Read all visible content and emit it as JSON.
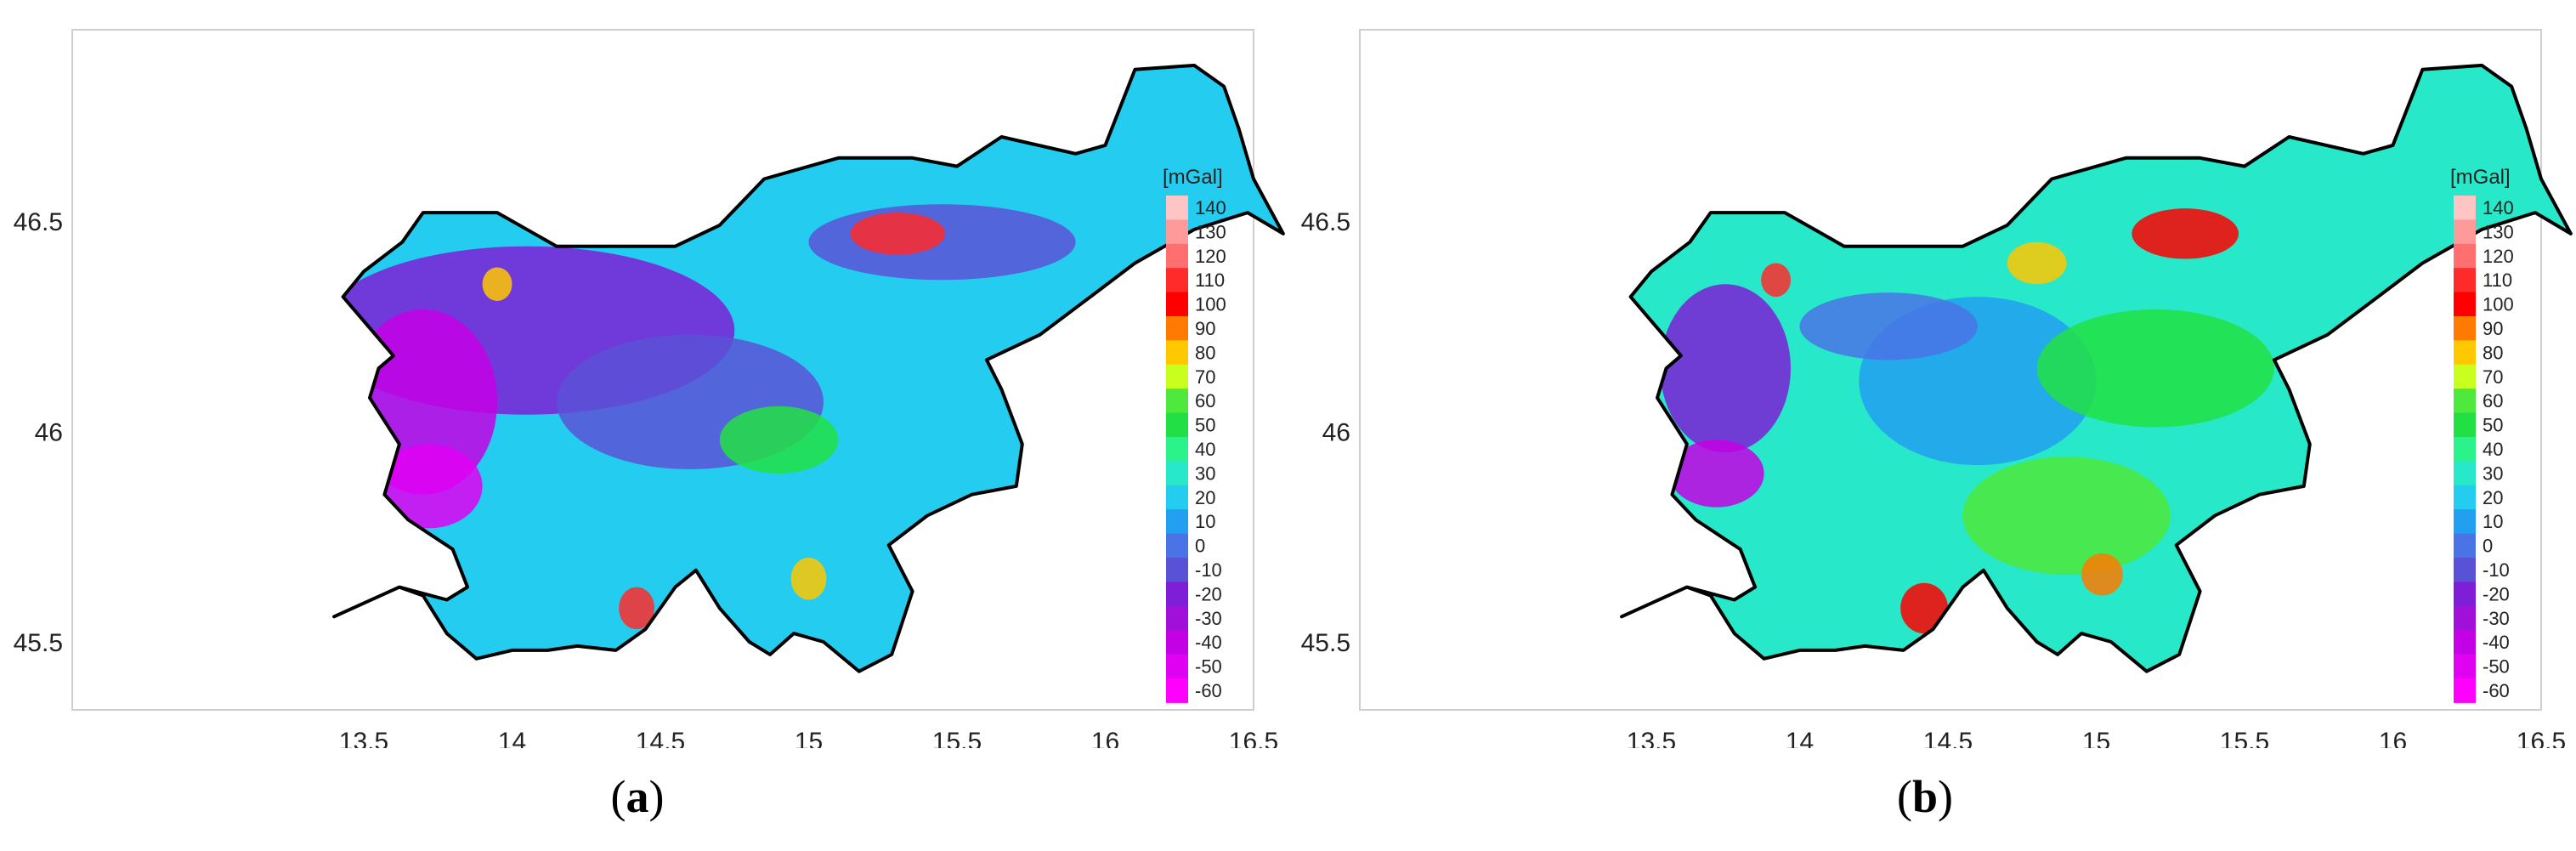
{
  "colorbar": {
    "unit": "[mGal]",
    "levels": [
      "140",
      "130",
      "120",
      "110",
      "100",
      "90",
      "80",
      "70",
      "60",
      "50",
      "40",
      "30",
      "20",
      "10",
      "0",
      "-10",
      "-20",
      "-30",
      "-40",
      "-50",
      "-60"
    ],
    "colors": [
      "#ffc4c4",
      "#ff9a9a",
      "#ff6f6f",
      "#ff2a2a",
      "#ff0000",
      "#ff7a00",
      "#ffc800",
      "#c8ff1e",
      "#4fe83c",
      "#22e044",
      "#2cf28a",
      "#27e8c8",
      "#24cdef",
      "#229ff0",
      "#4a74e6",
      "#5a52d6",
      "#7e1ed6",
      "#a010d8",
      "#c400e4",
      "#e000f2",
      "#ff00ff"
    ]
  },
  "axes": {
    "x_ticks": [
      "13.5",
      "14",
      "14.5",
      "15",
      "15.5",
      "16",
      "16.5"
    ],
    "y_ticks": [
      "46.5",
      "46",
      "45.5"
    ]
  },
  "panels": [
    {
      "caption_open": "(",
      "caption_letter": "a",
      "caption_close": ")",
      "blobs": [
        {
          "lon": 14.05,
          "lat": 46.24,
          "rx": 0.7,
          "ry": 0.2,
          "color": "#7e1ed6"
        },
        {
          "lon": 13.7,
          "lat": 46.07,
          "rx": 0.25,
          "ry": 0.22,
          "color": "#c400e4"
        },
        {
          "lon": 13.72,
          "lat": 45.87,
          "rx": 0.18,
          "ry": 0.1,
          "color": "#e000f2"
        },
        {
          "lon": 14.6,
          "lat": 46.07,
          "rx": 0.45,
          "ry": 0.16,
          "color": "#5a52d6"
        },
        {
          "lon": 15.45,
          "lat": 46.45,
          "rx": 0.45,
          "ry": 0.09,
          "color": "#5a52d6"
        },
        {
          "lon": 15.3,
          "lat": 46.47,
          "rx": 0.16,
          "ry": 0.05,
          "color": "#ff2a2a"
        },
        {
          "lon": 14.42,
          "lat": 45.58,
          "rx": 0.06,
          "ry": 0.05,
          "color": "#ff2a2a"
        },
        {
          "lon": 13.95,
          "lat": 46.35,
          "rx": 0.05,
          "ry": 0.04,
          "color": "#ffc800"
        },
        {
          "lon": 14.9,
          "lat": 45.98,
          "rx": 0.2,
          "ry": 0.08,
          "color": "#22e044"
        },
        {
          "lon": 15.0,
          "lat": 45.65,
          "rx": 0.06,
          "ry": 0.05,
          "color": "#ffc800"
        }
      ]
    },
    {
      "caption_open": "(",
      "caption_letter": "b",
      "caption_close": ")",
      "blobs": [
        {
          "lon": 13.75,
          "lat": 46.15,
          "rx": 0.22,
          "ry": 0.2,
          "color": "#7e1ed6"
        },
        {
          "lon": 13.72,
          "lat": 45.9,
          "rx": 0.16,
          "ry": 0.08,
          "color": "#c400e4"
        },
        {
          "lon": 14.6,
          "lat": 46.12,
          "rx": 0.4,
          "ry": 0.2,
          "color": "#229ff0"
        },
        {
          "lon": 14.3,
          "lat": 46.25,
          "rx": 0.3,
          "ry": 0.08,
          "color": "#4a74e6"
        },
        {
          "lon": 15.2,
          "lat": 46.15,
          "rx": 0.4,
          "ry": 0.14,
          "color": "#22e044"
        },
        {
          "lon": 14.9,
          "lat": 45.8,
          "rx": 0.35,
          "ry": 0.14,
          "color": "#4fe83c"
        },
        {
          "lon": 15.3,
          "lat": 46.47,
          "rx": 0.18,
          "ry": 0.06,
          "color": "#ff0000"
        },
        {
          "lon": 14.42,
          "lat": 45.58,
          "rx": 0.08,
          "ry": 0.06,
          "color": "#ff0000"
        },
        {
          "lon": 13.92,
          "lat": 46.36,
          "rx": 0.05,
          "ry": 0.04,
          "color": "#ff2a2a"
        },
        {
          "lon": 15.02,
          "lat": 45.66,
          "rx": 0.07,
          "ry": 0.05,
          "color": "#ff7a00"
        },
        {
          "lon": 14.8,
          "lat": 46.4,
          "rx": 0.1,
          "ry": 0.05,
          "color": "#ffc800"
        }
      ]
    }
  ]
}
